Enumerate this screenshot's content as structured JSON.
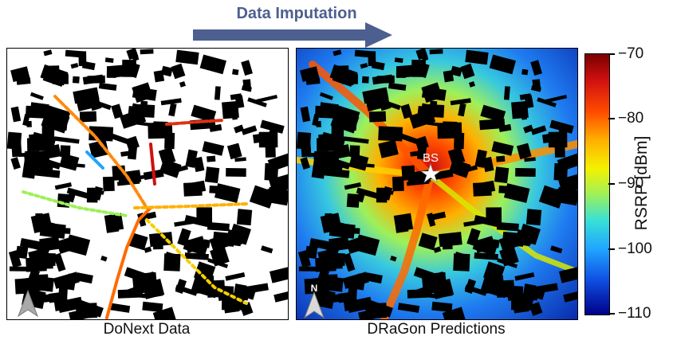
{
  "header": {
    "arrow_label": "Data Imputation"
  },
  "panels": {
    "left": {
      "caption": "DoNext Data"
    },
    "right": {
      "caption": "DRaGon Predictions",
      "bs_label": "BS",
      "north_label": "N"
    }
  },
  "colorbar": {
    "title": "RSRP  [dBm]",
    "ticks": [
      "−70",
      "−80",
      "−90",
      "−100",
      "−110"
    ],
    "colors": [
      "#7a0000",
      "#d01010",
      "#ff4a00",
      "#ffb000",
      "#f4f200",
      "#9ef05a",
      "#37e0d8",
      "#20a4ff",
      "#1054e6",
      "#00008a"
    ]
  },
  "colors": {
    "arrow": "#4d5f8f",
    "buildings": "#000000"
  }
}
